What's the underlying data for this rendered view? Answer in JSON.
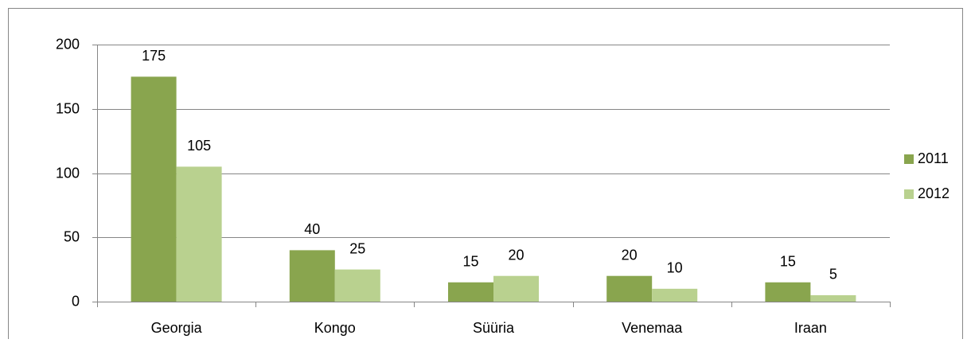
{
  "chart_data": {
    "type": "bar",
    "categories": [
      "Georgia",
      "Kongo",
      "Süüria",
      "Venemaa",
      "Iraan"
    ],
    "series": [
      {
        "name": "2011",
        "color": "#89a54e",
        "values": [
          175,
          40,
          15,
          20,
          15
        ]
      },
      {
        "name": "2012",
        "color": "#b9d18f",
        "values": [
          105,
          25,
          20,
          10,
          5
        ]
      }
    ],
    "ylim": [
      0,
      200
    ],
    "yticks": [
      0,
      50,
      100,
      150,
      200
    ],
    "grid": true,
    "legend": "right"
  }
}
